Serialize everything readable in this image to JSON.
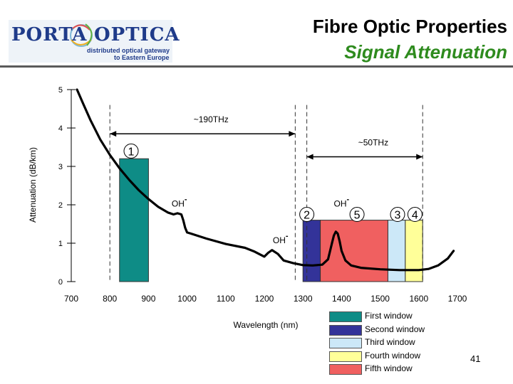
{
  "header": {
    "logo_left": "PORTA",
    "logo_right": "OPTICA",
    "logo_tagline_1": "distributed optical gateway",
    "logo_tagline_2": "to Eastern Europe",
    "title": "Fibre Optic Properties",
    "subtitle": "Signal Attenuation"
  },
  "colors": {
    "first_window": "#0e8c86",
    "second_window": "#333399",
    "third_window": "#cce8f8",
    "fourth_window": "#ffff99",
    "fifth_window": "#f06060",
    "subtitle": "#2e8b1e",
    "logo": "#1f3b8a"
  },
  "chart_data": {
    "type": "line",
    "title": "Signal Attenuation",
    "xlabel": "Wavelength (nm)",
    "ylabel": "Attenuation (dB/km)",
    "xlim": [
      700,
      1700
    ],
    "ylim": [
      0,
      5
    ],
    "x_ticks": [
      "700",
      "800",
      "900",
      "1000",
      "1100",
      "1200",
      "1300",
      "1400",
      "1500",
      "1600",
      "1700"
    ],
    "y_ticks": [
      "0",
      "1",
      "2",
      "3",
      "4",
      "5"
    ],
    "curve": {
      "x": [
        715,
        730,
        750,
        775,
        800,
        825,
        850,
        875,
        900,
        925,
        950,
        965,
        975,
        985,
        990,
        995,
        1000,
        1010,
        1050,
        1100,
        1150,
        1175,
        1200,
        1210,
        1220,
        1235,
        1250,
        1275,
        1300,
        1325,
        1350,
        1365,
        1375,
        1380,
        1385,
        1390,
        1395,
        1400,
        1410,
        1425,
        1450,
        1500,
        1550,
        1600,
        1625,
        1650,
        1675,
        1690
      ],
      "y": [
        5.0,
        4.65,
        4.2,
        3.7,
        3.3,
        2.95,
        2.65,
        2.38,
        2.15,
        1.95,
        1.8,
        1.75,
        1.78,
        1.75,
        1.6,
        1.4,
        1.28,
        1.25,
        1.12,
        0.98,
        0.88,
        0.78,
        0.65,
        0.75,
        0.82,
        0.72,
        0.55,
        0.48,
        0.43,
        0.42,
        0.44,
        0.58,
        1.0,
        1.2,
        1.3,
        1.25,
        1.05,
        0.8,
        0.55,
        0.42,
        0.36,
        0.32,
        0.3,
        0.3,
        0.33,
        0.42,
        0.6,
        0.8
      ]
    },
    "windows": [
      {
        "name": "First window",
        "number": "1",
        "x_start": 825,
        "x_end": 900,
        "height": 3.2,
        "color": "#0e8c86"
      },
      {
        "name": "Second window",
        "number": "2",
        "x_start": 1300,
        "x_end": 1345,
        "height": 1.6,
        "color": "#333399"
      },
      {
        "name": "Fifth window",
        "number": "5",
        "x_start": 1345,
        "x_end": 1520,
        "height": 1.6,
        "color": "#f06060"
      },
      {
        "name": "Third window",
        "number": "3",
        "x_start": 1520,
        "x_end": 1565,
        "height": 1.6,
        "color": "#cce8f8"
      },
      {
        "name": "Fourth window",
        "number": "4",
        "x_start": 1565,
        "x_end": 1610,
        "height": 1.6,
        "color": "#ffff99"
      }
    ],
    "bandwidth_annotations": [
      {
        "label": "~190THz",
        "x_start": 800,
        "x_end": 1280,
        "y": 3.85
      },
      {
        "label": "~50THz",
        "x_start": 1310,
        "x_end": 1610,
        "y": 3.25
      }
    ],
    "dashed_guides_x": [
      800,
      1280,
      1310,
      1610
    ],
    "oh_labels": [
      {
        "text": "OH",
        "sup": "-",
        "x": 960,
        "y": 1.95
      },
      {
        "text": "OH",
        "sup": "-",
        "x": 1380,
        "y": 1.95
      },
      {
        "text": "OH",
        "sup": "-",
        "x": 1222,
        "y": 1.0
      }
    ],
    "window_numbers": [
      {
        "label": "1",
        "x": 855,
        "y": 3.4
      },
      {
        "label": "2",
        "x": 1310,
        "y": 1.75
      },
      {
        "label": "5",
        "x": 1440,
        "y": 1.75
      },
      {
        "label": "3",
        "x": 1545,
        "y": 1.75
      },
      {
        "label": "4",
        "x": 1590,
        "y": 1.75
      }
    ]
  },
  "legend": [
    {
      "label": "First window",
      "color": "#0e8c86"
    },
    {
      "label": "Second window",
      "color": "#333399"
    },
    {
      "label": "Third window",
      "color": "#cce8f8"
    },
    {
      "label": "Fourth window",
      "color": "#ffff99"
    },
    {
      "label": "Fifth window",
      "color": "#f06060"
    }
  ],
  "footer": {
    "page_number": "41"
  }
}
